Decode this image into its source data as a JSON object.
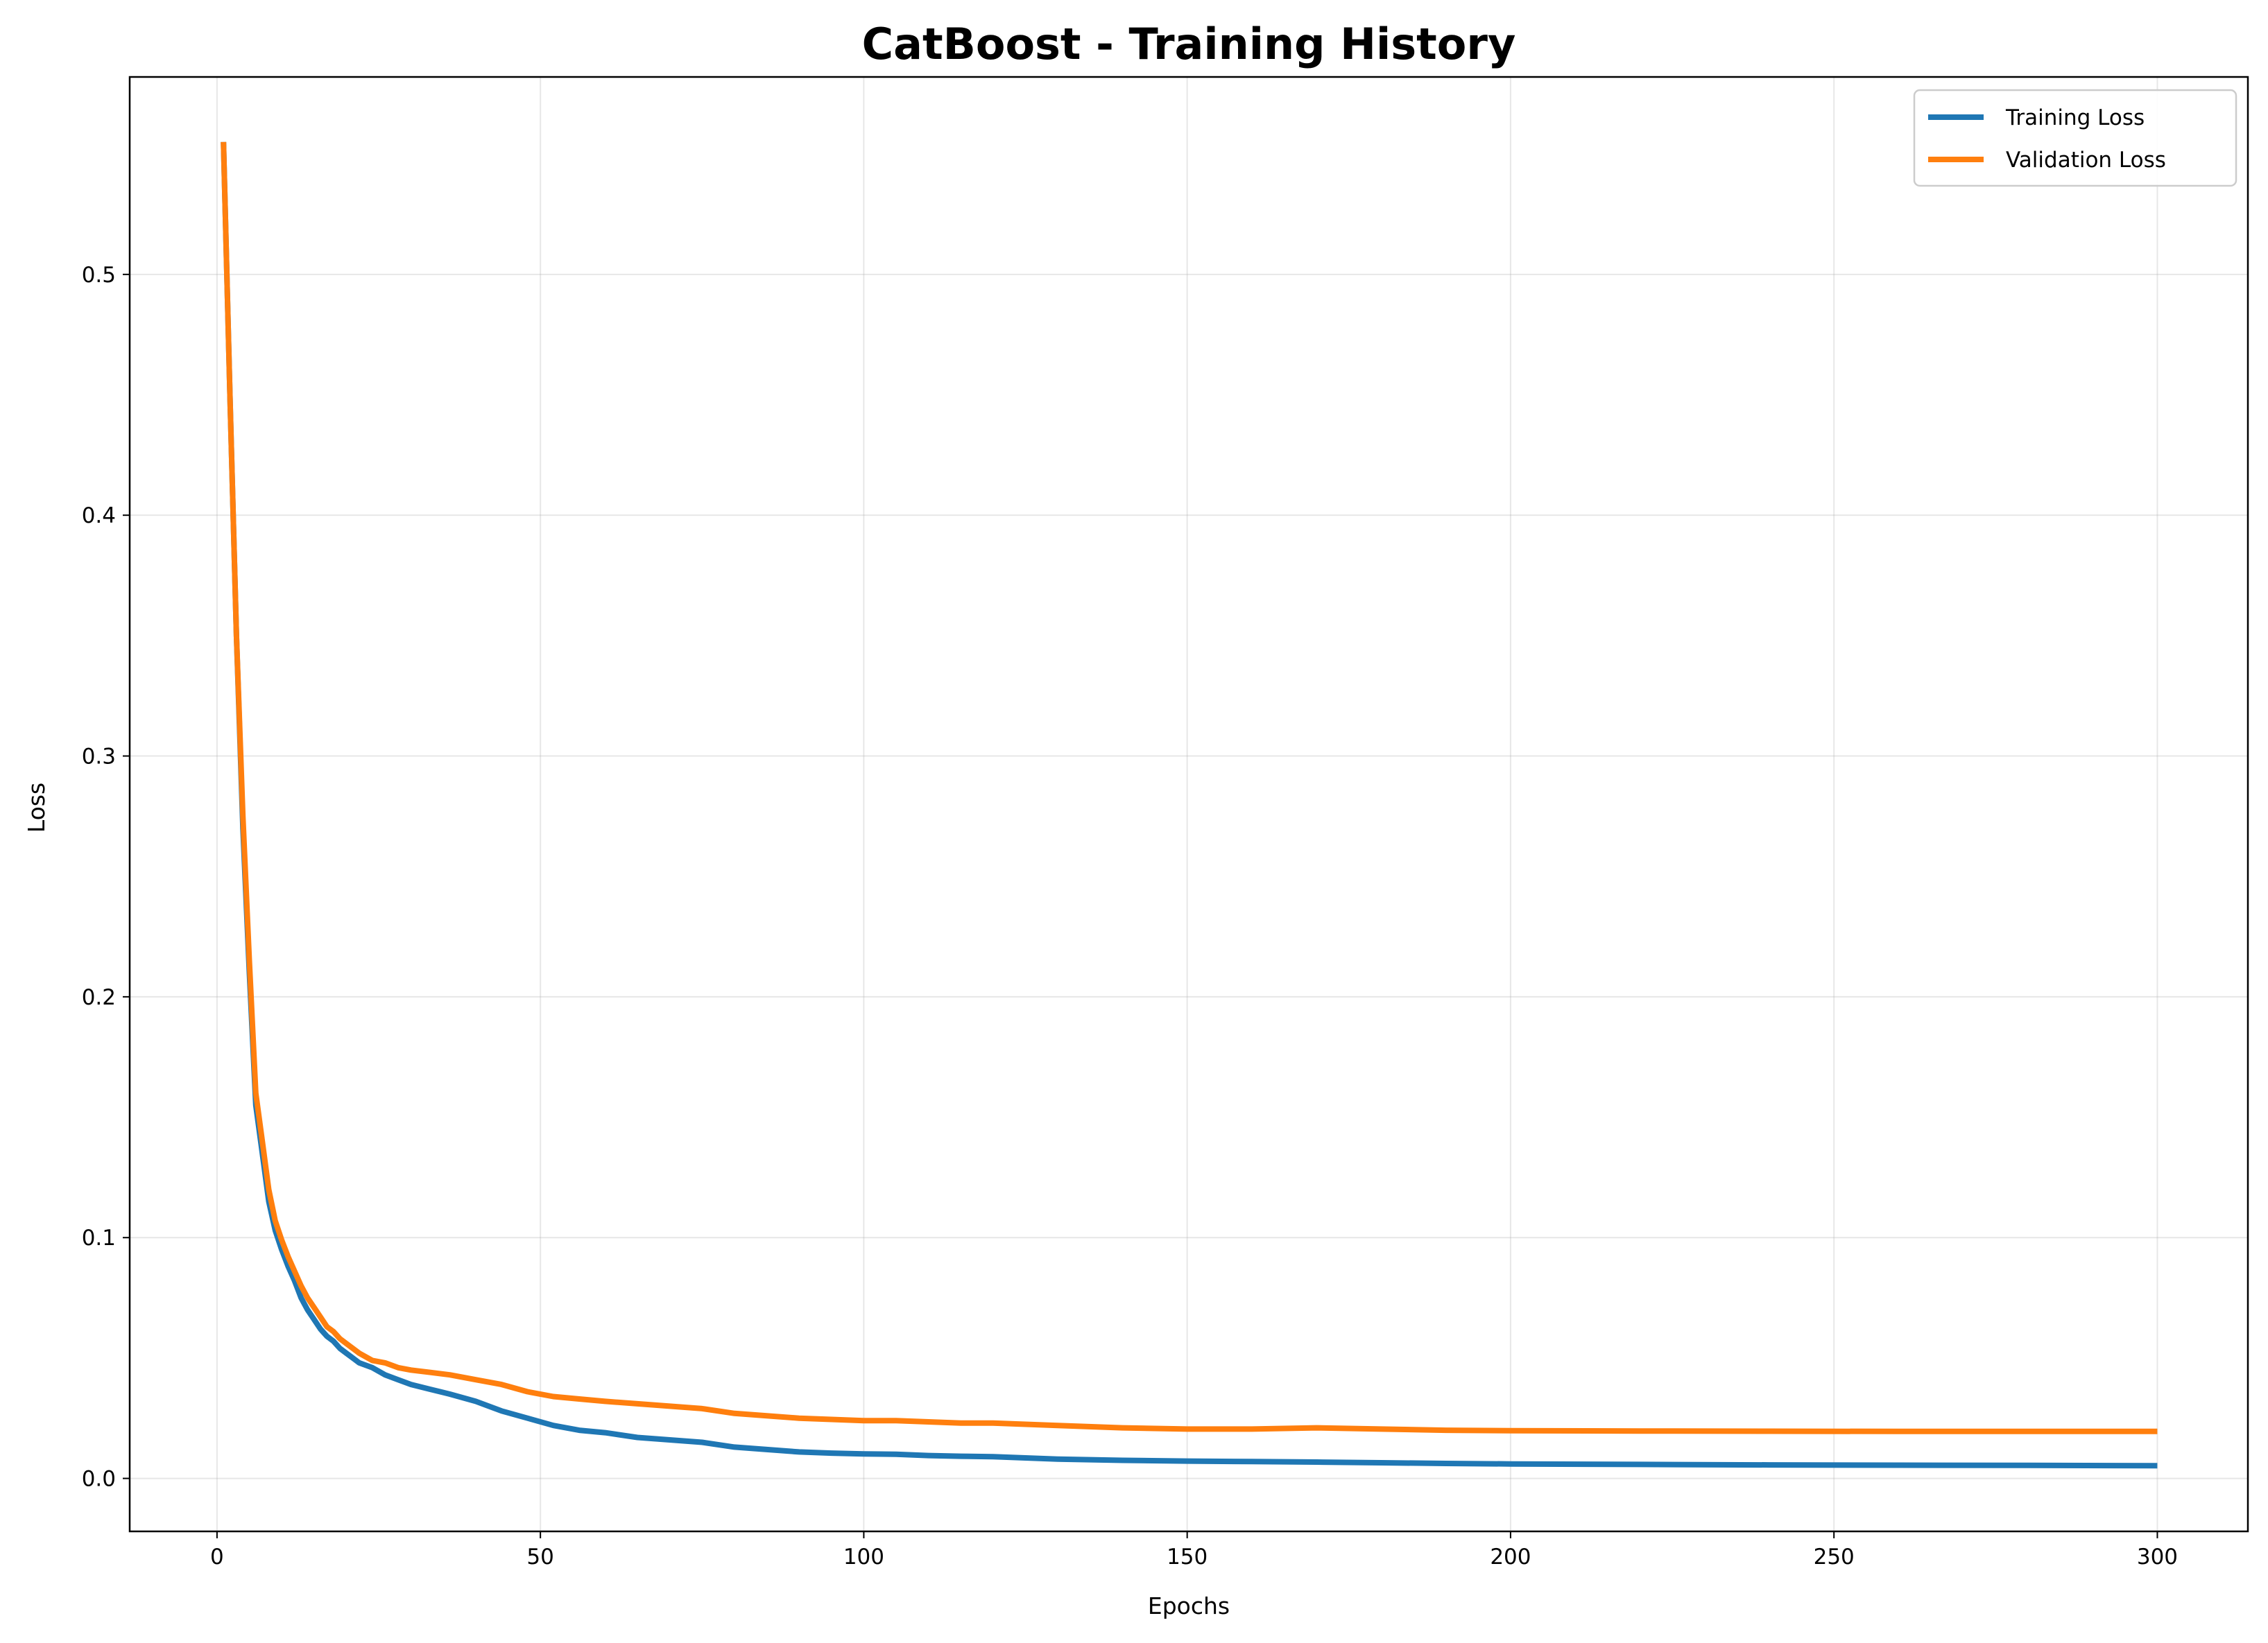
{
  "chart_data": {
    "type": "line",
    "title": "CatBoost - Training History",
    "xlabel": "Epochs",
    "ylabel": "Loss",
    "xlim": [
      -13.5,
      314
    ],
    "ylim": [
      -0.022,
      0.582
    ],
    "xticks": [
      0,
      50,
      100,
      150,
      200,
      250,
      300
    ],
    "yticks": [
      0.0,
      0.1,
      0.2,
      0.3,
      0.4,
      0.5
    ],
    "xtick_labels": [
      "0",
      "50",
      "100",
      "150",
      "200",
      "250",
      "300"
    ],
    "ytick_labels": [
      "0.0",
      "0.1",
      "0.2",
      "0.3",
      "0.4",
      "0.5"
    ],
    "grid": true,
    "legend_position": "top-right",
    "series": [
      {
        "name": "Training Loss",
        "color": "#1f77b4",
        "x": [
          1,
          2,
          3,
          4,
          5,
          6,
          7,
          8,
          9,
          10,
          11,
          12,
          13,
          14,
          15,
          16,
          17,
          18,
          19,
          20,
          22,
          24,
          26,
          28,
          30,
          33,
          36,
          40,
          44,
          48,
          52,
          56,
          60,
          65,
          70,
          75,
          80,
          85,
          90,
          95,
          100,
          105,
          110,
          115,
          120,
          130,
          140,
          150,
          160,
          170,
          180,
          190,
          200,
          220,
          240,
          260,
          280,
          300
        ],
        "y": [
          0.555,
          0.45,
          0.35,
          0.27,
          0.21,
          0.155,
          0.135,
          0.115,
          0.103,
          0.095,
          0.088,
          0.082,
          0.075,
          0.07,
          0.066,
          0.062,
          0.059,
          0.057,
          0.054,
          0.052,
          0.048,
          0.046,
          0.043,
          0.041,
          0.039,
          0.037,
          0.035,
          0.032,
          0.028,
          0.025,
          0.022,
          0.02,
          0.019,
          0.017,
          0.016,
          0.015,
          0.013,
          0.012,
          0.011,
          0.0105,
          0.0102,
          0.01,
          0.0095,
          0.0092,
          0.009,
          0.008,
          0.0075,
          0.0072,
          0.007,
          0.0068,
          0.0065,
          0.0062,
          0.006,
          0.0058,
          0.0056,
          0.0055,
          0.0054,
          0.0053
        ]
      },
      {
        "name": "Validation Loss",
        "color": "#ff7f0e",
        "x": [
          1,
          2,
          3,
          4,
          5,
          6,
          7,
          8,
          9,
          10,
          11,
          12,
          13,
          14,
          15,
          16,
          17,
          18,
          19,
          20,
          22,
          24,
          26,
          28,
          30,
          33,
          36,
          40,
          44,
          48,
          52,
          56,
          60,
          65,
          70,
          75,
          80,
          85,
          90,
          95,
          100,
          105,
          110,
          115,
          120,
          130,
          140,
          150,
          160,
          170,
          180,
          190,
          200,
          220,
          240,
          260,
          280,
          300
        ],
        "y": [
          0.555,
          0.45,
          0.35,
          0.275,
          0.215,
          0.16,
          0.14,
          0.12,
          0.107,
          0.099,
          0.092,
          0.086,
          0.08,
          0.075,
          0.071,
          0.067,
          0.063,
          0.061,
          0.058,
          0.056,
          0.052,
          0.049,
          0.048,
          0.046,
          0.045,
          0.044,
          0.043,
          0.041,
          0.039,
          0.036,
          0.034,
          0.033,
          0.032,
          0.031,
          0.03,
          0.029,
          0.027,
          0.026,
          0.025,
          0.0245,
          0.024,
          0.024,
          0.0235,
          0.023,
          0.023,
          0.022,
          0.021,
          0.0205,
          0.0205,
          0.021,
          0.0205,
          0.02,
          0.0198,
          0.0197,
          0.0196,
          0.0195,
          0.0195,
          0.0195
        ]
      }
    ]
  }
}
